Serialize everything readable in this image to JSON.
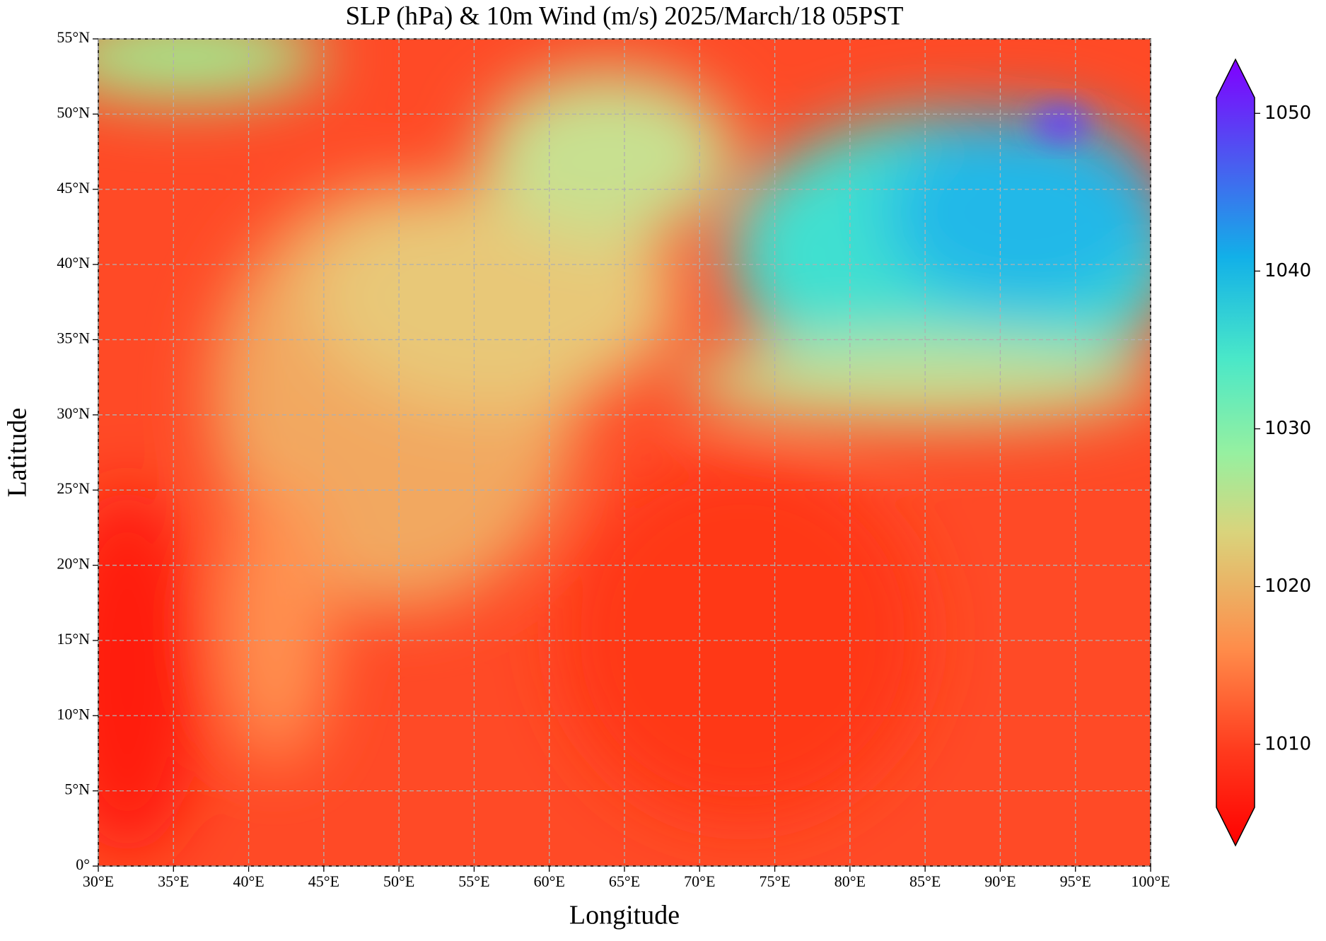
{
  "chart_data": {
    "type": "map",
    "title": "SLP (hPa) & 10m Wind (m/s)  2025/March/18  05PST",
    "xlabel": "Longitude",
    "ylabel": "Latitude",
    "xlim": [
      30,
      100
    ],
    "ylim": [
      0,
      55
    ],
    "xticks": [
      {
        "value": 30,
        "label": "30°E"
      },
      {
        "value": 35,
        "label": "35°E"
      },
      {
        "value": 40,
        "label": "40°E"
      },
      {
        "value": 45,
        "label": "45°E"
      },
      {
        "value": 50,
        "label": "50°E"
      },
      {
        "value": 55,
        "label": "55°E"
      },
      {
        "value": 60,
        "label": "60°E"
      },
      {
        "value": 65,
        "label": "65°E"
      },
      {
        "value": 70,
        "label": "70°E"
      },
      {
        "value": 75,
        "label": "75°E"
      },
      {
        "value": 80,
        "label": "80°E"
      },
      {
        "value": 85,
        "label": "85°E"
      },
      {
        "value": 90,
        "label": "90°E"
      },
      {
        "value": 95,
        "label": "95°E"
      },
      {
        "value": 100,
        "label": "100°E"
      }
    ],
    "yticks": [
      {
        "value": 0,
        "label": "0°"
      },
      {
        "value": 5,
        "label": "5°N"
      },
      {
        "value": 10,
        "label": "10°N"
      },
      {
        "value": 15,
        "label": "15°N"
      },
      {
        "value": 20,
        "label": "20°N"
      },
      {
        "value": 25,
        "label": "25°N"
      },
      {
        "value": 30,
        "label": "30°N"
      },
      {
        "value": 35,
        "label": "35°N"
      },
      {
        "value": 40,
        "label": "40°N"
      },
      {
        "value": 45,
        "label": "45°N"
      },
      {
        "value": 50,
        "label": "50°N"
      },
      {
        "value": 55,
        "label": "55°N"
      }
    ],
    "grid": true,
    "colormap": "rainbow_r",
    "clim": [
      1006,
      1051
    ],
    "cticks": [
      1010,
      1020,
      1030,
      1040,
      1050
    ],
    "extend": "both"
  }
}
